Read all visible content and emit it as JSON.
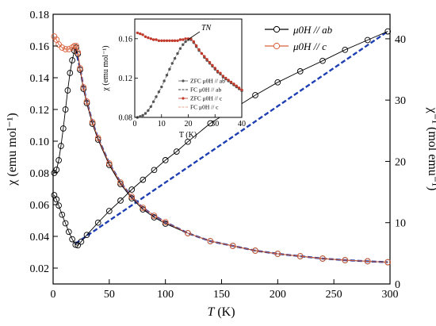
{
  "chart_data": [
    {
      "panel": "main",
      "type": "scatter",
      "xlabel": "T (K)",
      "xlabel_italic": "T",
      "xlabel_unit": "(K)",
      "ylabel_left": "χ (emu mol⁻¹)",
      "ylabel_right": "χ⁻¹ (mol emu⁻¹)",
      "xlim": [
        0,
        300
      ],
      "ylim_left": [
        0.01,
        0.18
      ],
      "ylim_right": [
        0,
        44
      ],
      "x_ticks": [
        "0",
        "50",
        "100",
        "150",
        "200",
        "250",
        "300"
      ],
      "y_left_ticks": [
        "0.02",
        "0.04",
        "0.06",
        "0.08",
        "0.10",
        "0.12",
        "0.14",
        "0.16",
        "0.18"
      ],
      "y_right_ticks": [
        "0",
        "10",
        "20",
        "30",
        "40"
      ],
      "grid": false,
      "legend_position": "top-right",
      "legend": [
        {
          "text": "μ0H // ab",
          "marker": "open-circle",
          "color": "#000000"
        },
        {
          "text": "μ0H // c",
          "marker": "open-circle",
          "color": "#d9603b"
        }
      ],
      "series": [
        {
          "name": "μ0H // ab",
          "axis": "left",
          "color": "#000000",
          "points": [
            [
              1,
              0.08
            ],
            [
              3,
              0.082
            ],
            [
              5,
              0.088
            ],
            [
              7,
              0.097
            ],
            [
              9,
              0.108
            ],
            [
              11,
              0.12
            ],
            [
              13,
              0.132
            ],
            [
              15,
              0.143
            ],
            [
              17,
              0.151
            ],
            [
              19,
              0.157
            ],
            [
              20.5,
              0.159
            ],
            [
              22,
              0.155
            ],
            [
              24,
              0.145
            ],
            [
              27,
              0.133
            ],
            [
              30,
              0.124
            ],
            [
              35,
              0.111
            ],
            [
              40,
              0.101
            ],
            [
              50,
              0.085
            ],
            [
              60,
              0.073
            ],
            [
              70,
              0.064
            ],
            [
              80,
              0.057
            ],
            [
              90,
              0.052
            ],
            [
              100,
              0.048
            ],
            [
              120,
              0.042
            ],
            [
              140,
              0.037
            ],
            [
              160,
              0.034
            ],
            [
              180,
              0.031
            ],
            [
              200,
              0.029
            ],
            [
              220,
              0.0275
            ],
            [
              240,
              0.026
            ],
            [
              260,
              0.025
            ],
            [
              280,
              0.0243
            ],
            [
              298,
              0.0237
            ]
          ]
        },
        {
          "name": "μ0H // c",
          "axis": "left",
          "color": "#d9603b",
          "points": [
            [
              1,
              0.166
            ],
            [
              3,
              0.164
            ],
            [
              5,
              0.161
            ],
            [
              8,
              0.159
            ],
            [
              11,
              0.158
            ],
            [
              14,
              0.158
            ],
            [
              17,
              0.159
            ],
            [
              19,
              0.16
            ],
            [
              20.5,
              0.16
            ],
            [
              22,
              0.156
            ],
            [
              24,
              0.146
            ],
            [
              27,
              0.134
            ],
            [
              30,
              0.125
            ],
            [
              35,
              0.112
            ],
            [
              40,
              0.102
            ],
            [
              50,
              0.086
            ],
            [
              60,
              0.074
            ],
            [
              70,
              0.065
            ],
            [
              80,
              0.058
            ],
            [
              90,
              0.053
            ],
            [
              100,
              0.049
            ],
            [
              120,
              0.042
            ],
            [
              140,
              0.037
            ],
            [
              160,
              0.034
            ],
            [
              180,
              0.031
            ],
            [
              200,
              0.029
            ],
            [
              220,
              0.0275
            ],
            [
              240,
              0.026
            ],
            [
              260,
              0.025
            ],
            [
              280,
              0.0243
            ],
            [
              298,
              0.0237
            ]
          ]
        },
        {
          "name": "χ⁻¹",
          "axis": "right",
          "color": "#000000",
          "points": [
            [
              1,
              14.5
            ],
            [
              3,
              13.8
            ],
            [
              5,
              12.8
            ],
            [
              8,
              11.3
            ],
            [
              11,
              9.9
            ],
            [
              14,
              8.5
            ],
            [
              17,
              7.3
            ],
            [
              20,
              6.4
            ],
            [
              22,
              6.3
            ],
            [
              25,
              6.9
            ],
            [
              30,
              8.0
            ],
            [
              40,
              10.0
            ],
            [
              50,
              11.9
            ],
            [
              60,
              13.6
            ],
            [
              70,
              15.4
            ],
            [
              80,
              17.0
            ],
            [
              90,
              18.6
            ],
            [
              100,
              20.2
            ],
            [
              110,
              21.6
            ],
            [
              120,
              23.2
            ],
            [
              140,
              26.2
            ],
            [
              160,
              28.5
            ],
            [
              180,
              30.8
            ],
            [
              200,
              32.9
            ],
            [
              220,
              34.7
            ],
            [
              240,
              36.4
            ],
            [
              260,
              38.2
            ],
            [
              280,
              39.8
            ],
            [
              298,
              41.2
            ]
          ]
        }
      ],
      "fit_lines": [
        {
          "axis": "left",
          "color": "#1e3fb4",
          "style": "dashed",
          "points": [
            [
              20,
              0.158
            ],
            [
              24,
              0.146
            ],
            [
              27,
              0.134
            ],
            [
              30,
              0.125
            ],
            [
              35,
              0.112
            ],
            [
              40,
              0.102
            ],
            [
              50,
              0.086
            ],
            [
              60,
              0.074
            ],
            [
              70,
              0.065
            ],
            [
              80,
              0.058
            ],
            [
              90,
              0.053
            ],
            [
              100,
              0.049
            ],
            [
              120,
              0.042
            ],
            [
              140,
              0.037
            ],
            [
              160,
              0.034
            ],
            [
              180,
              0.031
            ],
            [
              200,
              0.029
            ],
            [
              220,
              0.0275
            ],
            [
              240,
              0.026
            ],
            [
              260,
              0.025
            ],
            [
              280,
              0.0243
            ],
            [
              298,
              0.0237
            ]
          ]
        },
        {
          "axis": "right",
          "color": "#1e3fb4",
          "style": "dashed",
          "points": [
            [
              20,
              6.6
            ],
            [
              298,
              41.2
            ]
          ]
        }
      ]
    },
    {
      "panel": "inset",
      "type": "scatter",
      "xlabel": "T (K)",
      "ylabel": "χ (emu mol⁻¹)",
      "xlim": [
        0,
        40
      ],
      "ylim": [
        0.08,
        0.18
      ],
      "x_ticks": [
        "0",
        "10",
        "20",
        "30",
        "40"
      ],
      "y_ticks": [
        "0.08",
        "0.12",
        "0.16"
      ],
      "annotation": "TN",
      "annotation_at": [
        20.5,
        0.16
      ],
      "legend_position": "bottom-right",
      "legend": [
        {
          "text": "ZFC μ0H // ab",
          "color": "#555555",
          "marker": "filled-circle"
        },
        {
          "text": "FC μ0H // ab",
          "color": "#000000",
          "marker": "dash"
        },
        {
          "text": "ZFC μ0H // c",
          "color": "#c0392b",
          "marker": "filled-circle"
        },
        {
          "text": "FC μ0H // c",
          "color": "#e08a70",
          "marker": "dash"
        }
      ],
      "series": [
        {
          "name": "ZFC μ0H // ab",
          "color": "#555555",
          "points": [
            [
              1,
              0.08
            ],
            [
              2,
              0.081
            ],
            [
              3,
              0.082
            ],
            [
              4,
              0.084
            ],
            [
              5,
              0.087
            ],
            [
              6,
              0.091
            ],
            [
              7,
              0.096
            ],
            [
              8,
              0.101
            ],
            [
              9,
              0.106
            ],
            [
              10,
              0.111
            ],
            [
              11,
              0.117
            ],
            [
              12,
              0.123
            ],
            [
              13,
              0.129
            ],
            [
              14,
              0.135
            ],
            [
              15,
              0.14
            ],
            [
              16,
              0.145
            ],
            [
              17,
              0.15
            ],
            [
              18,
              0.154
            ],
            [
              19,
              0.157
            ],
            [
              20,
              0.159
            ],
            [
              21,
              0.159
            ],
            [
              22,
              0.156
            ],
            [
              23,
              0.152
            ],
            [
              24,
              0.148
            ],
            [
              25,
              0.145
            ],
            [
              26,
              0.141
            ],
            [
              27,
              0.138
            ],
            [
              28,
              0.135
            ],
            [
              29,
              0.132
            ],
            [
              30,
              0.129
            ],
            [
              31,
              0.126
            ],
            [
              32,
              0.124
            ],
            [
              33,
              0.121
            ],
            [
              34,
              0.119
            ],
            [
              35,
              0.117
            ],
            [
              36,
              0.115
            ],
            [
              37,
              0.113
            ],
            [
              38,
              0.111
            ],
            [
              39,
              0.109
            ],
            [
              40,
              0.107
            ]
          ]
        },
        {
          "name": "ZFC μ0H // c",
          "color": "#c0392b",
          "points": [
            [
              1,
              0.166
            ],
            [
              2,
              0.165
            ],
            [
              3,
              0.164
            ],
            [
              4,
              0.162
            ],
            [
              5,
              0.161
            ],
            [
              6,
              0.16
            ],
            [
              7,
              0.159
            ],
            [
              8,
              0.159
            ],
            [
              9,
              0.158
            ],
            [
              10,
              0.158
            ],
            [
              11,
              0.158
            ],
            [
              12,
              0.158
            ],
            [
              13,
              0.158
            ],
            [
              14,
              0.158
            ],
            [
              15,
              0.158
            ],
            [
              16,
              0.158
            ],
            [
              17,
              0.159
            ],
            [
              18,
              0.159
            ],
            [
              19,
              0.16
            ],
            [
              20,
              0.16
            ],
            [
              21,
              0.16
            ],
            [
              22,
              0.157
            ],
            [
              23,
              0.153
            ],
            [
              24,
              0.149
            ],
            [
              25,
              0.145
            ],
            [
              26,
              0.142
            ],
            [
              27,
              0.139
            ],
            [
              28,
              0.136
            ],
            [
              29,
              0.133
            ],
            [
              30,
              0.13
            ],
            [
              31,
              0.127
            ],
            [
              32,
              0.125
            ],
            [
              33,
              0.122
            ],
            [
              34,
              0.12
            ],
            [
              35,
              0.118
            ],
            [
              36,
              0.116
            ],
            [
              37,
              0.114
            ],
            [
              38,
              0.112
            ],
            [
              39,
              0.11
            ],
            [
              40,
              0.108
            ]
          ]
        }
      ]
    }
  ]
}
